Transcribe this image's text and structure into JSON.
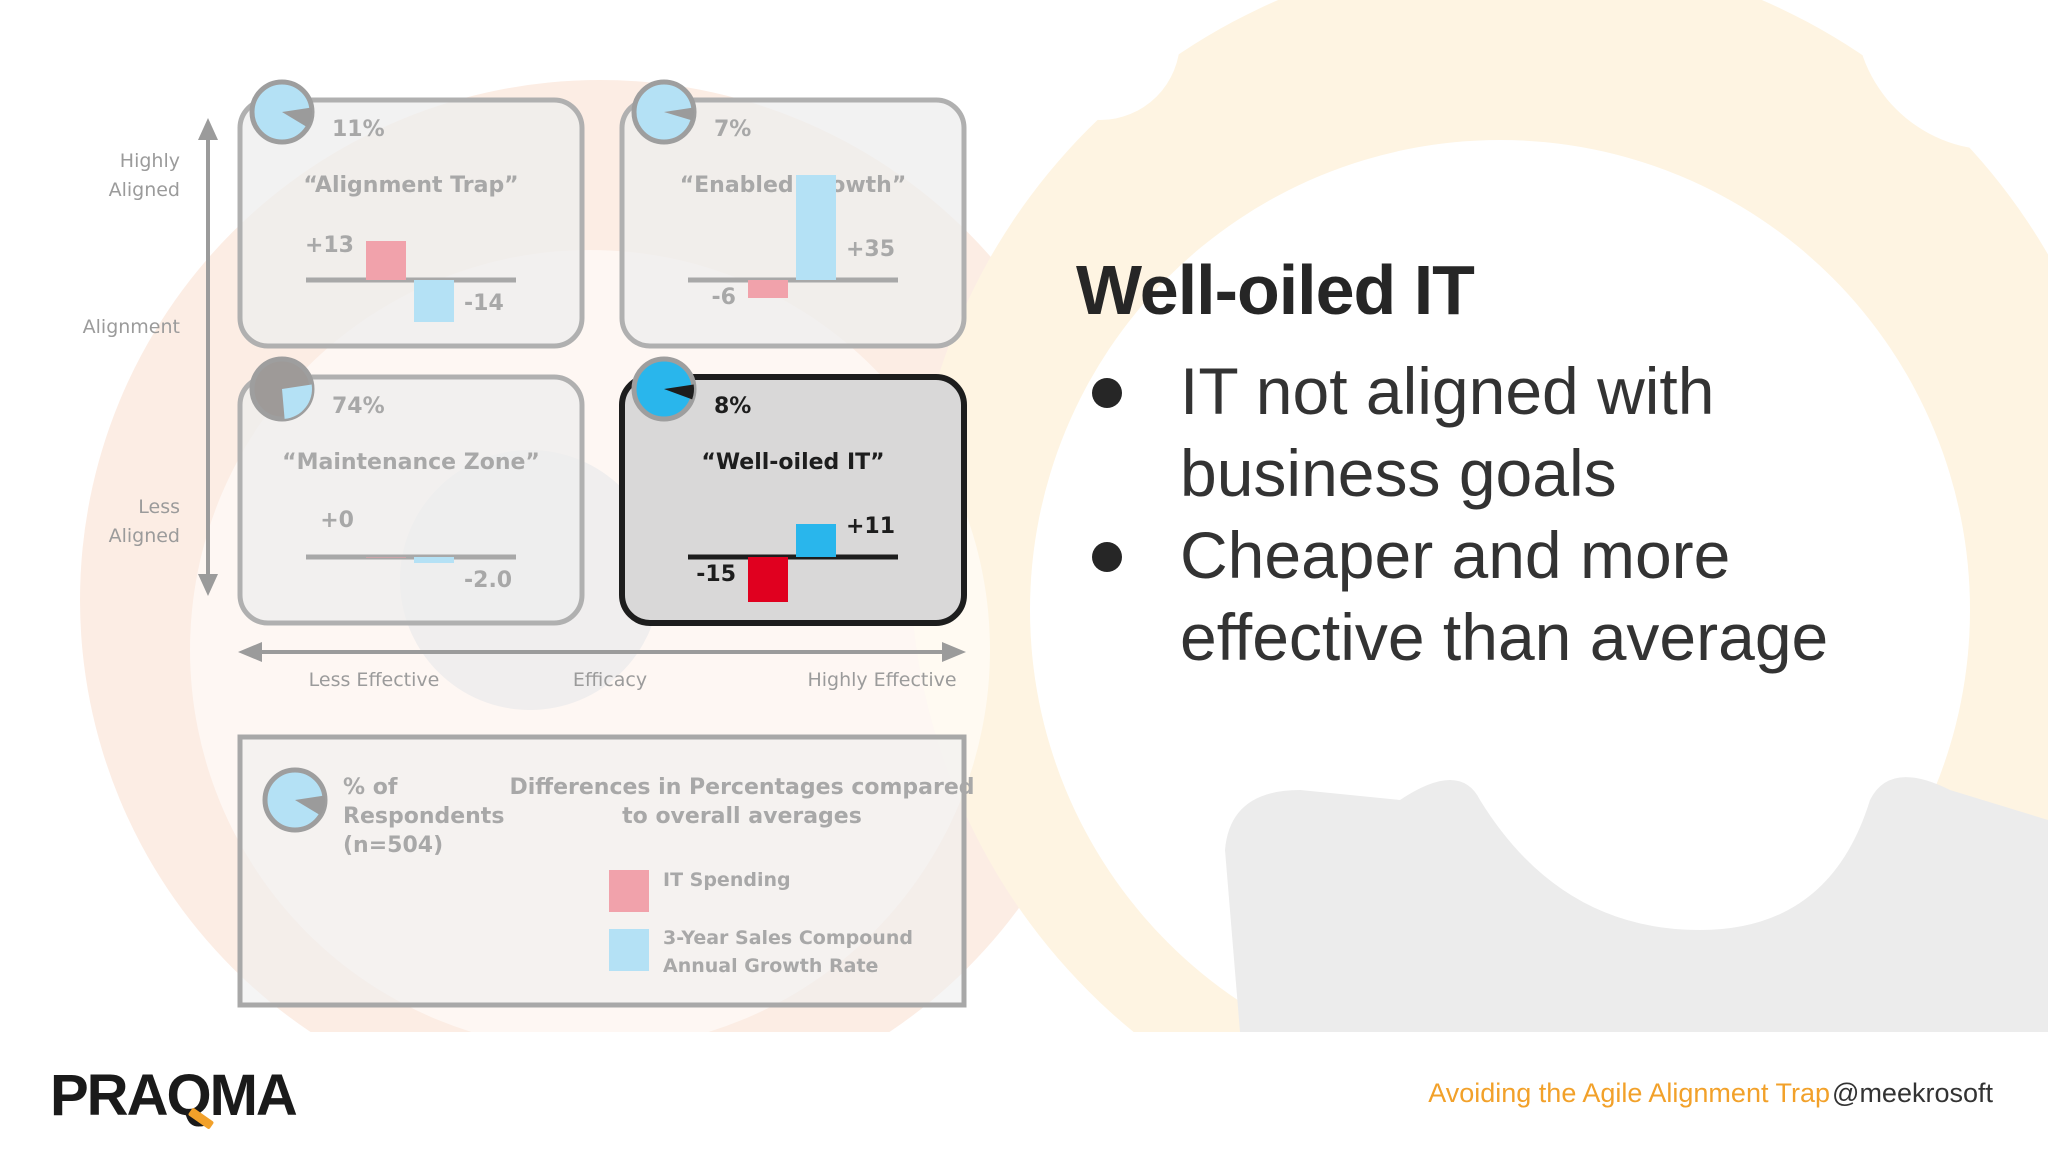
{
  "slide": {
    "title": "Well-oiled IT",
    "bullets": [
      "IT not aligned with business goals",
      "Cheaper and more effective than average"
    ]
  },
  "diagram": {
    "y_axis": {
      "top_label_line1": "Highly",
      "top_label_line2": "Aligned",
      "mid_label": "Alignment",
      "bottom_label_line1": "Less",
      "bottom_label_line2": "Aligned"
    },
    "x_axis": {
      "left_label": "Less Effective",
      "mid_label": "Efficacy",
      "right_label": "Highly Effective"
    },
    "quadrants": [
      {
        "id": "alignment-trap",
        "percent_label": "11%",
        "percent": 11,
        "name": "“Alignment Trap”",
        "it_spending": 13,
        "it_spending_label": "+13",
        "sales_growth": -14,
        "sales_growth_label": "-14",
        "highlighted": false
      },
      {
        "id": "enabled-growth",
        "percent_label": "7%",
        "percent": 7,
        "name": "“Enabled Growth”",
        "it_spending": -6,
        "it_spending_label": "-6",
        "sales_growth": 35,
        "sales_growth_label": "+35",
        "highlighted": false
      },
      {
        "id": "maintenance-zone",
        "percent_label": "74%",
        "percent": 74,
        "name": "“Maintenance Zone”",
        "it_spending": 0,
        "it_spending_label": "+0",
        "sales_growth": -2.0,
        "sales_growth_label": "-2.0",
        "highlighted": false
      },
      {
        "id": "well-oiled-it",
        "percent_label": "8%",
        "percent": 8,
        "name": "“Well-oiled IT”",
        "it_spending": -15,
        "it_spending_label": "-15",
        "sales_growth": 11,
        "sales_growth_label": "+11",
        "highlighted": true
      }
    ],
    "legend": {
      "pie_label_line1": "% of",
      "pie_label_line2": "Respondents",
      "pie_label_line3": "(n=504)",
      "diff_title_line1": "Differences in Percentages compared",
      "diff_title_line2": "to overall averages",
      "it_spending_label": "IT Spending",
      "growth_label_line1": "3-Year Sales Compound",
      "growth_label_line2": "Annual Growth Rate"
    },
    "colors": {
      "it_spending_active": "#e0001f",
      "it_spending_faded": "#f1a2ab",
      "growth_active": "#29b6ec",
      "growth_faded": "#b4e1f5",
      "pie_faded": "#b4e1f5",
      "pie_active": "#29b6ec",
      "pie_dark": "#9e9a98"
    }
  },
  "footer": {
    "logo_part1": "PRA",
    "logo_q": "Q",
    "logo_part2": "MA",
    "talk_title": "Avoiding the Agile Alignment Trap",
    "handle": "@meekrosoft"
  }
}
